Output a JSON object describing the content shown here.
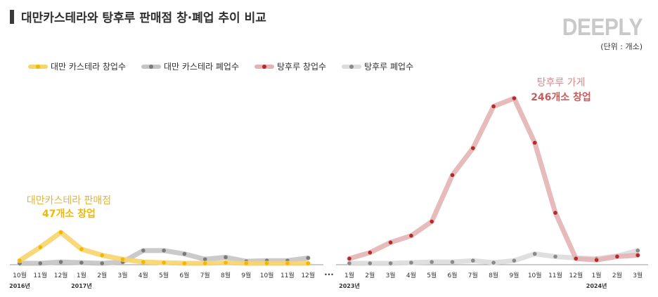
{
  "title": "대만카스테라와 탕후루 판매점 창·폐업 추이 비교",
  "logo": "DEEPLY",
  "unit": "(단위 : 개소)",
  "colors": {
    "castella_open": "#f7d46a",
    "castella_open_dot": "#f2b800",
    "castella_close": "#c4c4c4",
    "castella_close_dot": "#7a7a7a",
    "tanghulu_open": "#e4b4b4",
    "tanghulu_open_dot": "#b52a2a",
    "tanghulu_close": "#dcdcdc",
    "tanghulu_close_dot": "#8a8a8a",
    "annot_castella": "#e0b53a",
    "annot_castella_bold": "#f2b800",
    "annot_tanghulu": "#d48a8a",
    "annot_tanghulu_bold": "#c75c5c"
  },
  "chart_data": {
    "type": "line",
    "ylim": [
      0,
      250
    ],
    "axis_break": "···",
    "panels": [
      {
        "x": [
          "10월",
          "11월",
          "12월",
          "1월",
          "2월",
          "3월",
          "4월",
          "5월",
          "6월",
          "7월",
          "8월",
          "9월",
          "10월",
          "11월",
          "12월"
        ],
        "year_labels": [
          {
            "index": 0,
            "label": "2016년"
          },
          {
            "index": 3,
            "label": "2017년"
          }
        ],
        "series": [
          {
            "name": "대만 카스테라 창업수",
            "key": "castella_open",
            "values": [
              5,
              25,
              47,
              22,
              13,
              7,
              3,
              2,
              1,
              1,
              2,
              1,
              1,
              1,
              1
            ]
          },
          {
            "name": "대만 카스테라 폐업수",
            "key": "castella_close",
            "values": [
              1,
              1,
              3,
              2,
              1,
              3,
              20,
              20,
              15,
              7,
              10,
              4,
              5,
              5,
              9
            ]
          }
        ]
      },
      {
        "x": [
          "1월",
          "2월",
          "3월",
          "4월",
          "5월",
          "6월",
          "7월",
          "8월",
          "9월",
          "10월",
          "11월",
          "12월",
          "1월",
          "2월",
          "3월"
        ],
        "year_labels": [
          {
            "index": 0,
            "label": "2023년"
          },
          {
            "index": 12,
            "label": "2024년"
          }
        ],
        "series": [
          {
            "name": "탕후루 창업수",
            "key": "tanghulu_open",
            "values": [
              8,
              17,
              32,
              42,
              63,
              132,
              172,
              234,
              246,
              180,
              76,
              8,
              6,
              11,
              13
            ]
          },
          {
            "name": "탕후루 폐업수",
            "key": "tanghulu_close",
            "values": [
              1,
              1,
              1,
              2,
              3,
              3,
              5,
              2,
              5,
              15,
              11,
              9,
              8,
              12,
              20
            ]
          }
        ]
      }
    ],
    "annotations": [
      {
        "text": "대만카스테라 판매점",
        "bold": "47개소 창업",
        "panel": 0
      },
      {
        "text": "탕후루 가게",
        "bold": "246개소 창업",
        "panel": 1
      }
    ]
  }
}
